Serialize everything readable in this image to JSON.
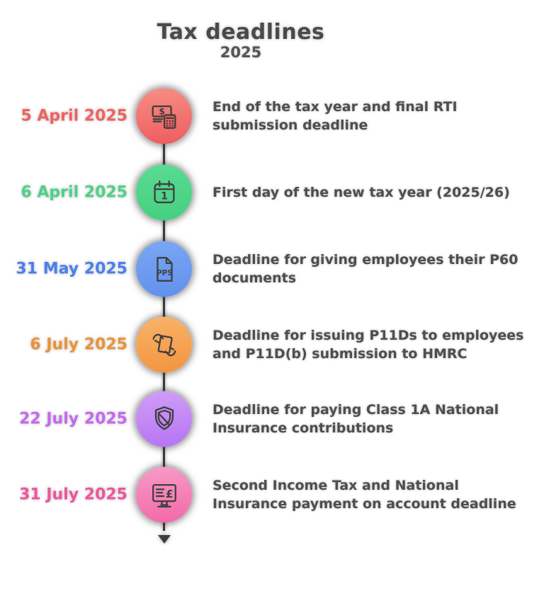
{
  "title": "Tax deadlines",
  "subtitle": "2025",
  "colors": {
    "title_text": "#4a4a4a",
    "description_text": "#4e4e4e",
    "timeline_line": "#3c3c3c"
  },
  "end_arrow_icon": "down-arrow-icon",
  "items": [
    {
      "date": "5 April 2025",
      "date_color": "#ee6360",
      "circle_gradient_start": "#f58f85",
      "circle_gradient_end": "#ee5c5e",
      "icon": "money-calculator-icon",
      "icon_label": "$",
      "description": "End of the tax year and final RTI submission deadline"
    },
    {
      "date": "6 April 2025",
      "date_color": "#4ed189",
      "circle_gradient_start": "#5adb93",
      "circle_gradient_end": "#45cf80",
      "icon": "calendar-icon",
      "icon_label": "1",
      "description": "First day of the new tax year (2025/26)"
    },
    {
      "date": "31 May 2025",
      "date_color": "#4a7fee",
      "circle_gradient_start": "#7aa8f2",
      "circle_gradient_end": "#6190ee",
      "icon": "pps-document-icon",
      "icon_label": "PPS",
      "description": "Deadline for giving employees their P60 documents"
    },
    {
      "date": "6 July 2025",
      "date_color": "#eb9237",
      "circle_gradient_start": "#f9b368",
      "circle_gradient_end": "#f29440",
      "icon": "hands-document-icon",
      "icon_label": "",
      "description": "Deadline for issuing P11Ds to employees and P11D(b) submission to HMRC"
    },
    {
      "date": "22 July 2025",
      "date_color": "#c369f0",
      "circle_gradient_start": "#d09ef7",
      "circle_gradient_end": "#b673f3",
      "icon": "shield-icon",
      "icon_label": "",
      "description": "Deadline for paying Class 1A National Insurance contributions"
    },
    {
      "date": "31 July 2025",
      "date_color": "#ef549b",
      "circle_gradient_start": "#f79cc7",
      "circle_gradient_end": "#f268a8",
      "icon": "monitor-pound-icon",
      "icon_label": "£",
      "description": "Second Income Tax and National Insurance payment on account deadline"
    }
  ]
}
